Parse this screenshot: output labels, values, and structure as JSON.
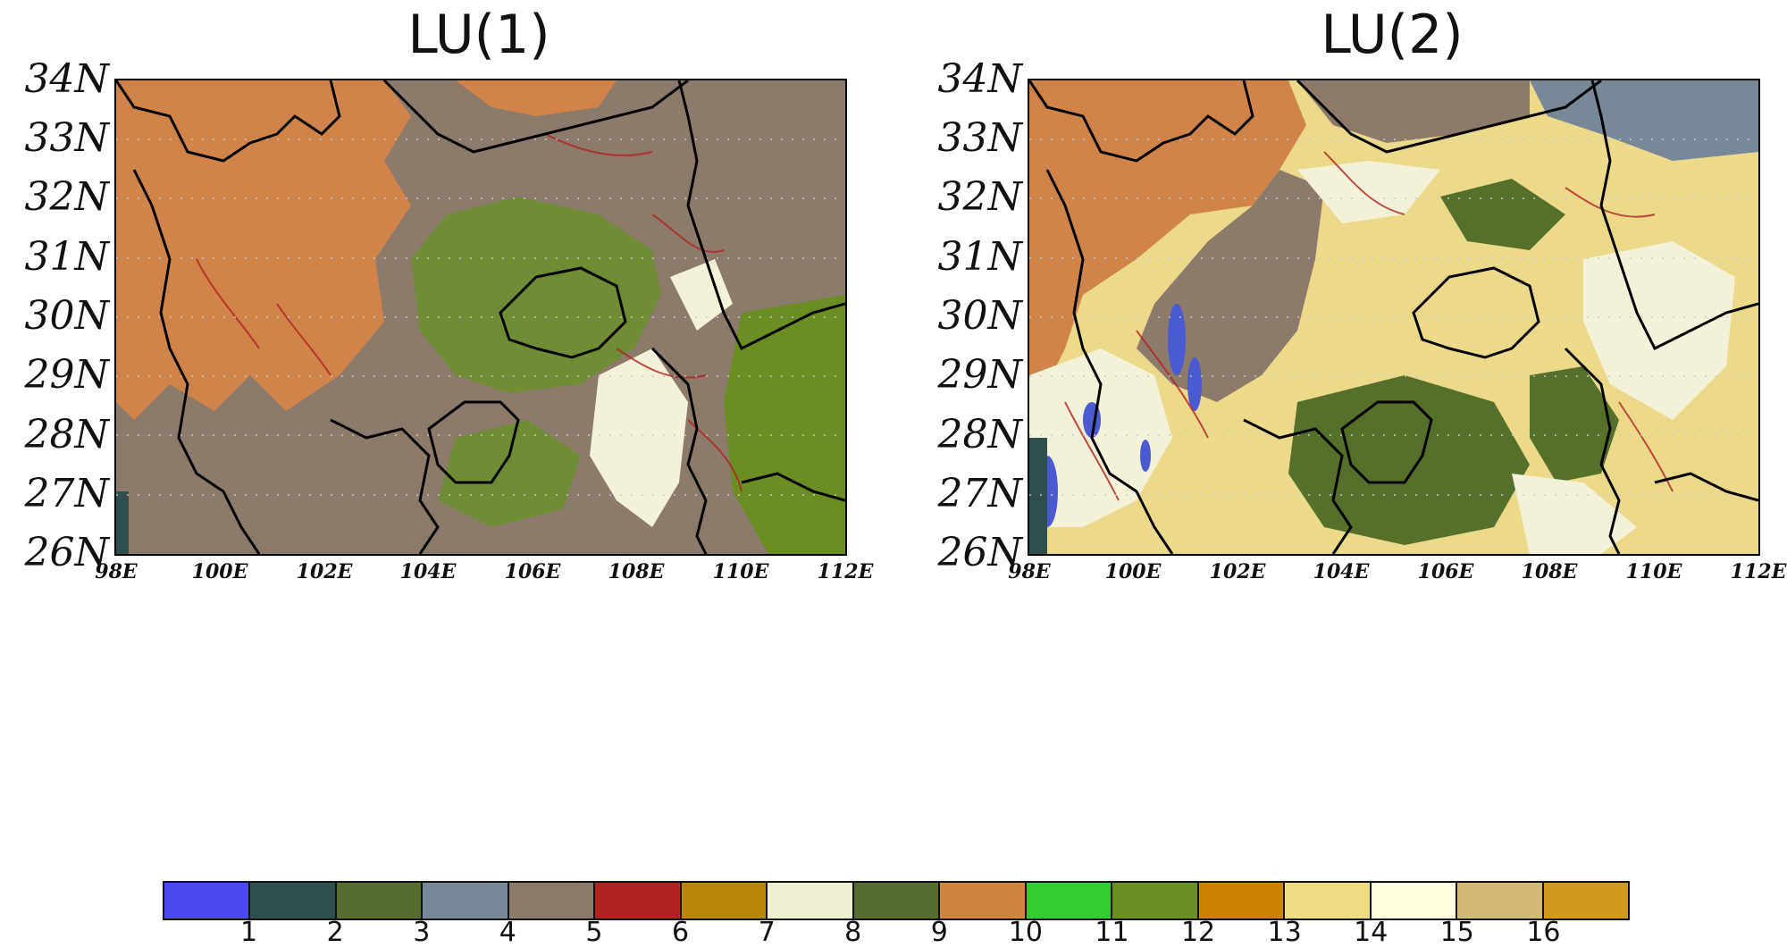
{
  "panels": [
    {
      "title": "LU(1)",
      "lat_ticks": [
        "34N",
        "33N",
        "32N",
        "31N",
        "30N",
        "29N",
        "28N",
        "27N",
        "26N"
      ],
      "lon_ticks": [
        "98E",
        "100E",
        "102E",
        "104E",
        "106E",
        "108E",
        "110E",
        "112E"
      ]
    },
    {
      "title": "LU(2)",
      "lat_ticks": [
        "34N",
        "33N",
        "32N",
        "31N",
        "30N",
        "29N",
        "28N",
        "27N",
        "26N"
      ],
      "lon_ticks": [
        "98E",
        "100E",
        "102E",
        "104E",
        "106E",
        "108E",
        "110E",
        "112E"
      ]
    }
  ],
  "colorbar": {
    "labels": [
      "1",
      "2",
      "3",
      "4",
      "5",
      "6",
      "7",
      "8",
      "9",
      "10",
      "11",
      "12",
      "13",
      "14",
      "15",
      "16"
    ],
    "colors": [
      "#4a4af0",
      "#2f4f4f",
      "#556b2f",
      "#778899",
      "#8b7b6b",
      "#b22222",
      "#b8860b",
      "#eeeed2",
      "#556b2f",
      "#cd853f",
      "#32cd32",
      "#6b8e23",
      "#cc8400",
      "#eedc82",
      "#ffffe0",
      "#d2b978",
      "#d19a1c"
    ]
  },
  "map_colors": {
    "plateau": "#d0844a",
    "mountain": "#8c7a6b",
    "basin": "#6f8d35",
    "forest": "#55702a",
    "cropland": "#ecd98a",
    "pale": "#f3f1d8",
    "water": "#4a5ad0",
    "dark": "#2f4f4f",
    "border": "#000000"
  }
}
